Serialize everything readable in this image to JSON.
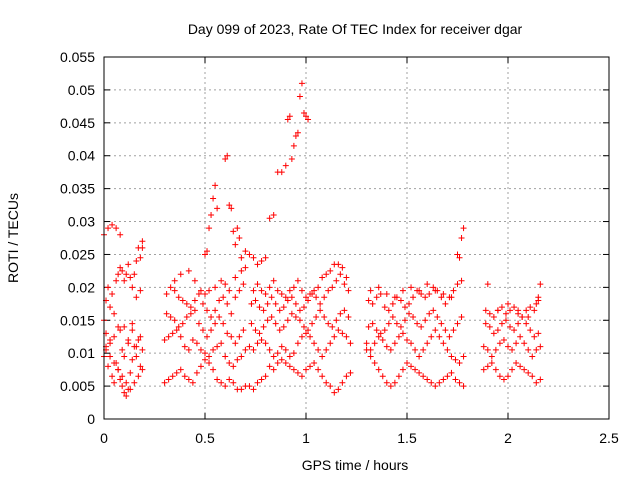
{
  "chart_data": {
    "type": "scatter",
    "title": "Day 099 of 2023, Rate Of TEC Index for receiver dgar",
    "xlabel": "GPS time / hours",
    "ylabel": "ROTI / TECUs",
    "xlim": [
      0,
      2.5
    ],
    "ylim": [
      0,
      0.055
    ],
    "xticks": [
      0,
      0.5,
      1,
      1.5,
      2,
      2.5
    ],
    "xtick_labels": [
      "0",
      "0.5",
      "1",
      "1.5",
      "2",
      "2.5"
    ],
    "yticks": [
      0,
      0.005,
      0.01,
      0.015,
      0.02,
      0.025,
      0.03,
      0.035,
      0.04,
      0.045,
      0.05,
      0.055
    ],
    "ytick_labels": [
      "0",
      "0.005",
      "0.01",
      "0.015",
      "0.02",
      "0.025",
      "0.03",
      "0.035",
      "0.04",
      "0.045",
      "0.05",
      "0.055"
    ],
    "grid": true,
    "legend": null,
    "marker": "+",
    "color": "#ff0000",
    "series": [
      {
        "name": "ROTI",
        "x": [
          0.0,
          0.01,
          0.02,
          0.03,
          0.04,
          0.05,
          0.06,
          0.07,
          0.08,
          0.09,
          0.1,
          0.11,
          0.12,
          0.13,
          0.14,
          0.15,
          0.16,
          0.17,
          0.18,
          0.19,
          0.0,
          0.01,
          0.02,
          0.03,
          0.04,
          0.05,
          0.06,
          0.07,
          0.08,
          0.09,
          0.1,
          0.11,
          0.12,
          0.13,
          0.14,
          0.15,
          0.16,
          0.17,
          0.18,
          0.19,
          0.0,
          0.02,
          0.04,
          0.06,
          0.08,
          0.1,
          0.12,
          0.14,
          0.16,
          0.18,
          0.01,
          0.03,
          0.05,
          0.07,
          0.09,
          0.11,
          0.13,
          0.15,
          0.17,
          0.19,
          0.01,
          0.03,
          0.05,
          0.07,
          0.08,
          0.09,
          0.1,
          0.12,
          0.14,
          0.16,
          0.18,
          0.19,
          0.3,
          0.32,
          0.34,
          0.36,
          0.38,
          0.4,
          0.42,
          0.44,
          0.46,
          0.48,
          0.5,
          0.52,
          0.54,
          0.56,
          0.58,
          0.6,
          0.62,
          0.64,
          0.66,
          0.68,
          0.7,
          0.3,
          0.32,
          0.34,
          0.36,
          0.38,
          0.4,
          0.42,
          0.44,
          0.46,
          0.48,
          0.5,
          0.52,
          0.54,
          0.56,
          0.58,
          0.6,
          0.62,
          0.64,
          0.66,
          0.68,
          0.7,
          0.31,
          0.33,
          0.35,
          0.37,
          0.39,
          0.41,
          0.43,
          0.45,
          0.47,
          0.49,
          0.51,
          0.53,
          0.55,
          0.57,
          0.59,
          0.61,
          0.63,
          0.65,
          0.67,
          0.69,
          0.31,
          0.33,
          0.35,
          0.37,
          0.39,
          0.41,
          0.43,
          0.45,
          0.47,
          0.49,
          0.51,
          0.53,
          0.55,
          0.57,
          0.59,
          0.61,
          0.63,
          0.65,
          0.67,
          0.69,
          0.35,
          0.38,
          0.42,
          0.45,
          0.48,
          0.5,
          0.52,
          0.55,
          0.58,
          0.6,
          0.62,
          0.65,
          0.68,
          0.7,
          0.5,
          0.51,
          0.52,
          0.53,
          0.54,
          0.55,
          0.56,
          0.6,
          0.61,
          0.62,
          0.63,
          0.64,
          0.65,
          0.66,
          0.67,
          0.68,
          0.72,
          0.74,
          0.76,
          0.78,
          0.8,
          0.82,
          0.84,
          0.86,
          0.88,
          0.9,
          0.92,
          0.94,
          0.96,
          0.98,
          1.0,
          1.02,
          1.04,
          1.06,
          1.08,
          1.1,
          1.12,
          1.14,
          1.16,
          1.18,
          1.2,
          1.22,
          0.72,
          0.74,
          0.76,
          0.78,
          0.8,
          0.82,
          0.84,
          0.86,
          0.88,
          0.9,
          0.92,
          0.94,
          0.96,
          0.98,
          1.0,
          1.02,
          1.04,
          1.06,
          1.08,
          1.1,
          1.12,
          1.14,
          1.16,
          1.18,
          1.2,
          1.22,
          0.73,
          0.75,
          0.77,
          0.79,
          0.81,
          0.83,
          0.85,
          0.87,
          0.89,
          0.91,
          0.93,
          0.95,
          0.97,
          0.99,
          1.01,
          1.03,
          1.05,
          1.07,
          1.09,
          1.11,
          1.13,
          1.15,
          1.17,
          1.19,
          1.21,
          0.73,
          0.75,
          0.77,
          0.79,
          0.81,
          0.83,
          0.85,
          0.87,
          0.89,
          0.91,
          0.93,
          0.95,
          0.97,
          0.99,
          1.01,
          1.03,
          1.05,
          1.07,
          1.09,
          1.11,
          1.13,
          1.15,
          1.17,
          1.19,
          1.21,
          0.74,
          0.76,
          0.78,
          0.8,
          0.82,
          0.84,
          0.86,
          0.88,
          0.9,
          0.92,
          0.94,
          0.96,
          0.98,
          1.0,
          1.02,
          1.04,
          1.06,
          1.08,
          1.1,
          1.12,
          1.14,
          1.16,
          1.18,
          1.2,
          0.7,
          0.72,
          0.74,
          0.76,
          0.78,
          0.8,
          0.82,
          0.84,
          0.86,
          0.88,
          0.9,
          0.91,
          0.92,
          0.93,
          0.94,
          0.95,
          0.96,
          0.97,
          0.98,
          0.99,
          1.0,
          1.01,
          1.3,
          1.32,
          1.34,
          1.36,
          1.38,
          1.4,
          1.42,
          1.44,
          1.46,
          1.48,
          1.5,
          1.52,
          1.54,
          1.56,
          1.58,
          1.6,
          1.62,
          1.64,
          1.66,
          1.68,
          1.7,
          1.72,
          1.74,
          1.76,
          1.78,
          1.3,
          1.32,
          1.34,
          1.36,
          1.38,
          1.4,
          1.42,
          1.44,
          1.46,
          1.48,
          1.5,
          1.52,
          1.54,
          1.56,
          1.58,
          1.6,
          1.62,
          1.64,
          1.66,
          1.68,
          1.7,
          1.72,
          1.74,
          1.76,
          1.78,
          1.31,
          1.33,
          1.35,
          1.37,
          1.39,
          1.41,
          1.43,
          1.45,
          1.47,
          1.49,
          1.51,
          1.53,
          1.55,
          1.57,
          1.59,
          1.61,
          1.63,
          1.65,
          1.67,
          1.69,
          1.71,
          1.73,
          1.75,
          1.77,
          1.31,
          1.33,
          1.35,
          1.37,
          1.39,
          1.41,
          1.43,
          1.45,
          1.47,
          1.49,
          1.51,
          1.53,
          1.55,
          1.57,
          1.59,
          1.61,
          1.63,
          1.65,
          1.67,
          1.69,
          1.71,
          1.73,
          1.75,
          1.77,
          1.32,
          1.36,
          1.4,
          1.44,
          1.48,
          1.52,
          1.56,
          1.6,
          1.64,
          1.68,
          1.72,
          1.75,
          1.76,
          1.77,
          1.78,
          1.88,
          1.9,
          1.92,
          1.94,
          1.96,
          1.98,
          2.0,
          2.02,
          2.04,
          2.06,
          2.08,
          2.1,
          2.12,
          2.14,
          2.16,
          1.88,
          1.9,
          1.92,
          1.94,
          1.96,
          1.98,
          2.0,
          2.02,
          2.04,
          2.06,
          2.08,
          2.1,
          2.12,
          2.14,
          2.16,
          1.89,
          1.91,
          1.93,
          1.95,
          1.97,
          1.99,
          2.01,
          2.03,
          2.05,
          2.07,
          2.09,
          2.11,
          2.13,
          2.15,
          1.89,
          1.91,
          1.93,
          1.95,
          1.97,
          1.99,
          2.01,
          2.03,
          2.05,
          2.07,
          2.09,
          2.11,
          2.13,
          2.15,
          1.9,
          1.95,
          2.0,
          2.05,
          2.1,
          2.14,
          2.15,
          2.16
        ],
        "y": [
          0.0095,
          0.011,
          0.008,
          0.012,
          0.0065,
          0.0055,
          0.0085,
          0.0075,
          0.006,
          0.005,
          0.004,
          0.0035,
          0.0045,
          0.007,
          0.009,
          0.011,
          0.0095,
          0.012,
          0.008,
          0.0105,
          0.015,
          0.018,
          0.02,
          0.017,
          0.019,
          0.016,
          0.021,
          0.022,
          0.023,
          0.0225,
          0.021,
          0.022,
          0.0235,
          0.0215,
          0.02,
          0.022,
          0.024,
          0.026,
          0.0245,
          0.027,
          0.028,
          0.029,
          0.0295,
          0.029,
          0.028,
          0.014,
          0.012,
          0.0135,
          0.011,
          0.0125,
          0.0105,
          0.0095,
          0.0085,
          0.0075,
          0.0065,
          0.0055,
          0.0045,
          0.0055,
          0.0065,
          0.0075,
          0.013,
          0.0115,
          0.0125,
          0.014,
          0.0135,
          0.0105,
          0.0095,
          0.0115,
          0.0145,
          0.0185,
          0.0195,
          0.026,
          0.0055,
          0.006,
          0.0065,
          0.007,
          0.0075,
          0.0065,
          0.006,
          0.0055,
          0.007,
          0.008,
          0.009,
          0.0085,
          0.0075,
          0.006,
          0.0055,
          0.005,
          0.006,
          0.0055,
          0.0045,
          0.0045,
          0.005,
          0.012,
          0.0125,
          0.013,
          0.0135,
          0.0125,
          0.011,
          0.0105,
          0.012,
          0.0115,
          0.0105,
          0.01,
          0.0095,
          0.0105,
          0.011,
          0.0115,
          0.0095,
          0.0085,
          0.008,
          0.009,
          0.0095,
          0.0105,
          0.016,
          0.0155,
          0.015,
          0.014,
          0.0145,
          0.0155,
          0.016,
          0.0165,
          0.0145,
          0.0135,
          0.0125,
          0.0135,
          0.0145,
          0.0155,
          0.0145,
          0.013,
          0.0125,
          0.0115,
          0.0125,
          0.0135,
          0.019,
          0.02,
          0.0195,
          0.0185,
          0.018,
          0.0175,
          0.017,
          0.018,
          0.019,
          0.0175,
          0.0165,
          0.0155,
          0.0165,
          0.018,
          0.0185,
          0.0175,
          0.016,
          0.0185,
          0.0195,
          0.0205,
          0.021,
          0.022,
          0.0225,
          0.021,
          0.0195,
          0.019,
          0.0195,
          0.02,
          0.021,
          0.0205,
          0.0195,
          0.0215,
          0.0225,
          0.023,
          0.025,
          0.0255,
          0.029,
          0.031,
          0.0335,
          0.0355,
          0.032,
          0.0395,
          0.04,
          0.0325,
          0.032,
          0.0285,
          0.0265,
          0.029,
          0.0275,
          0.0245,
          0.005,
          0.0045,
          0.0055,
          0.006,
          0.0065,
          0.008,
          0.0075,
          0.0085,
          0.009,
          0.0085,
          0.008,
          0.0075,
          0.007,
          0.0065,
          0.0075,
          0.008,
          0.0085,
          0.0075,
          0.0065,
          0.0055,
          0.005,
          0.004,
          0.0045,
          0.0055,
          0.0065,
          0.007,
          0.011,
          0.0105,
          0.0115,
          0.012,
          0.0115,
          0.0105,
          0.0095,
          0.01,
          0.011,
          0.0105,
          0.0095,
          0.01,
          0.0115,
          0.0125,
          0.013,
          0.0125,
          0.0115,
          0.0105,
          0.0095,
          0.0105,
          0.0115,
          0.0125,
          0.0135,
          0.013,
          0.0125,
          0.0115,
          0.0145,
          0.0135,
          0.013,
          0.014,
          0.015,
          0.0155,
          0.0145,
          0.0135,
          0.014,
          0.015,
          0.016,
          0.0155,
          0.015,
          0.014,
          0.0135,
          0.0145,
          0.0155,
          0.0165,
          0.0155,
          0.0145,
          0.014,
          0.015,
          0.016,
          0.0165,
          0.0155,
          0.0175,
          0.018,
          0.017,
          0.0165,
          0.0175,
          0.0185,
          0.0175,
          0.0165,
          0.017,
          0.018,
          0.0185,
          0.0175,
          0.0165,
          0.017,
          0.018,
          0.019,
          0.0185,
          0.0175,
          0.0185,
          0.0195,
          0.02,
          0.021,
          0.022,
          0.0205,
          0.0195,
          0.0195,
          0.0205,
          0.0195,
          0.019,
          0.02,
          0.021,
          0.0195,
          0.019,
          0.0185,
          0.0195,
          0.02,
          0.021,
          0.0195,
          0.0185,
          0.019,
          0.0195,
          0.02,
          0.0215,
          0.022,
          0.0225,
          0.0235,
          0.0235,
          0.023,
          0.0215,
          0.0255,
          0.025,
          0.0245,
          0.0235,
          0.024,
          0.0245,
          0.0305,
          0.031,
          0.0375,
          0.0375,
          0.0385,
          0.0455,
          0.046,
          0.0395,
          0.0415,
          0.043,
          0.0435,
          0.049,
          0.051,
          0.0465,
          0.046,
          0.0455,
          0.0105,
          0.0095,
          0.0085,
          0.0075,
          0.0065,
          0.0055,
          0.005,
          0.0055,
          0.0065,
          0.0075,
          0.0085,
          0.008,
          0.0075,
          0.007,
          0.0065,
          0.006,
          0.0055,
          0.005,
          0.0055,
          0.006,
          0.0065,
          0.007,
          0.006,
          0.0055,
          0.005,
          0.0115,
          0.0105,
          0.0115,
          0.0125,
          0.012,
          0.011,
          0.0105,
          0.0115,
          0.0125,
          0.013,
          0.012,
          0.0115,
          0.0105,
          0.0095,
          0.0105,
          0.0115,
          0.0125,
          0.0135,
          0.0125,
          0.0115,
          0.0105,
          0.0095,
          0.009,
          0.0085,
          0.0095,
          0.014,
          0.0145,
          0.0135,
          0.013,
          0.0135,
          0.0145,
          0.0155,
          0.0145,
          0.014,
          0.015,
          0.016,
          0.0155,
          0.0145,
          0.014,
          0.015,
          0.016,
          0.0165,
          0.0155,
          0.0145,
          0.0135,
          0.0125,
          0.0135,
          0.0145,
          0.0155,
          0.018,
          0.0175,
          0.0185,
          0.019,
          0.017,
          0.0165,
          0.0175,
          0.0185,
          0.018,
          0.017,
          0.0175,
          0.0185,
          0.0195,
          0.019,
          0.0185,
          0.019,
          0.02,
          0.0195,
          0.0185,
          0.0175,
          0.0185,
          0.0195,
          0.0205,
          0.021,
          0.0195,
          0.02,
          0.019,
          0.0185,
          0.0195,
          0.02,
          0.0195,
          0.0205,
          0.0195,
          0.019,
          0.0185,
          0.025,
          0.0245,
          0.0275,
          0.029,
          0.0075,
          0.008,
          0.0085,
          0.0075,
          0.0065,
          0.006,
          0.0065,
          0.0075,
          0.0085,
          0.008,
          0.0075,
          0.007,
          0.0065,
          0.0055,
          0.006,
          0.011,
          0.0105,
          0.0095,
          0.0105,
          0.0115,
          0.012,
          0.011,
          0.0105,
          0.0115,
          0.0125,
          0.0115,
          0.0105,
          0.0095,
          0.0105,
          0.011,
          0.0145,
          0.014,
          0.013,
          0.0135,
          0.0145,
          0.015,
          0.014,
          0.0135,
          0.0145,
          0.0155,
          0.0145,
          0.0135,
          0.0125,
          0.013,
          0.0165,
          0.016,
          0.0155,
          0.0165,
          0.017,
          0.016,
          0.0165,
          0.017,
          0.016,
          0.0155,
          0.0165,
          0.017,
          0.0165,
          0.018,
          0.0205,
          0.0165,
          0.0175,
          0.0165,
          0.0155,
          0.0175,
          0.0185,
          0.0205
        ]
      }
    ]
  }
}
